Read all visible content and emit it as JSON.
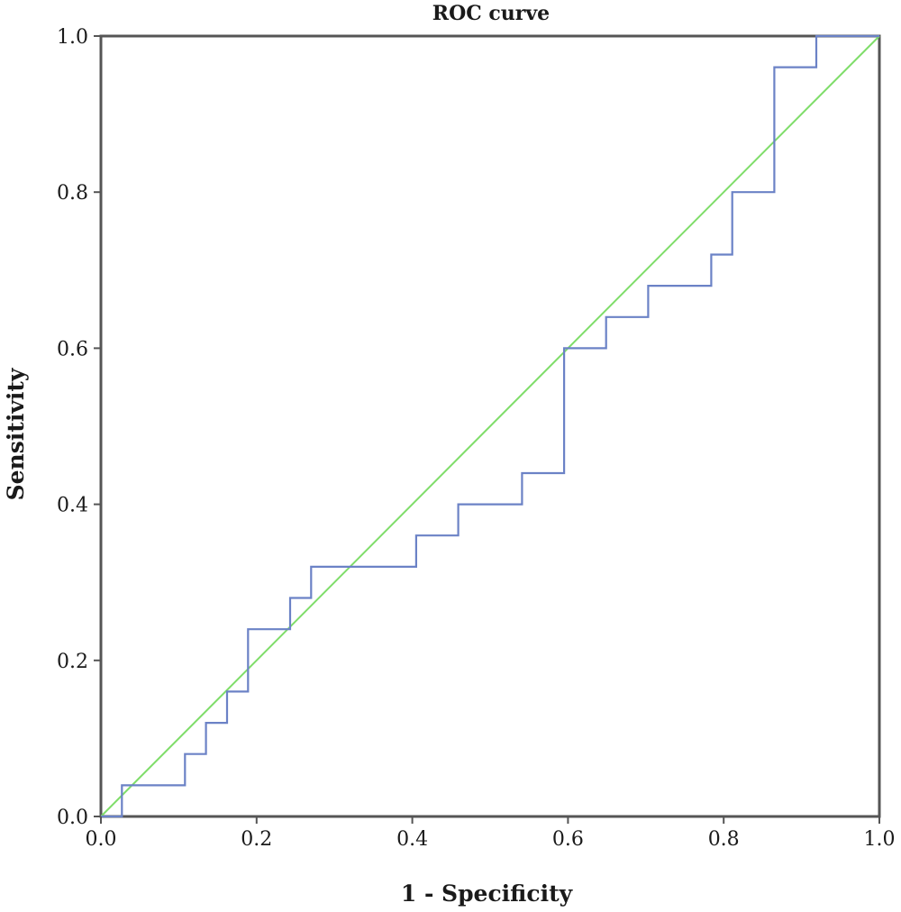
{
  "chart_data": {
    "type": "line",
    "title": "ROC curve",
    "xlabel": "1 - Specificity",
    "ylabel": "Sensitivity",
    "xlim": [
      0,
      1
    ],
    "ylim": [
      0,
      1
    ],
    "x_ticks": [
      "0.0",
      "0.2",
      "0.4",
      "0.6",
      "0.8",
      "1.0"
    ],
    "y_ticks": [
      "0.0",
      "0.2",
      "0.4",
      "0.6",
      "0.8",
      "1.0"
    ],
    "grid": false,
    "legend": "none",
    "series": [
      {
        "color": "#6b82c6",
        "step": true,
        "x": [
          0.0,
          0.027,
          0.027,
          0.108,
          0.108,
          0.135,
          0.135,
          0.162,
          0.162,
          0.189,
          0.189,
          0.243,
          0.243,
          0.27,
          0.27,
          0.405,
          0.405,
          0.459,
          0.459,
          0.541,
          0.541,
          0.595,
          0.595,
          0.649,
          0.649,
          0.703,
          0.703,
          0.784,
          0.784,
          0.811,
          0.811,
          0.865,
          0.865,
          0.919,
          0.919,
          1.0
        ],
        "y": [
          0.0,
          0.0,
          0.04,
          0.04,
          0.08,
          0.08,
          0.12,
          0.12,
          0.16,
          0.16,
          0.24,
          0.24,
          0.28,
          0.28,
          0.32,
          0.32,
          0.36,
          0.36,
          0.4,
          0.4,
          0.44,
          0.44,
          0.6,
          0.6,
          0.64,
          0.64,
          0.68,
          0.68,
          0.72,
          0.72,
          0.8,
          0.8,
          0.96,
          0.96,
          1.0,
          1.0
        ]
      },
      {
        "color": "#7fdd6a",
        "step": false,
        "x": [
          0,
          1
        ],
        "y": [
          0,
          1
        ]
      }
    ]
  }
}
